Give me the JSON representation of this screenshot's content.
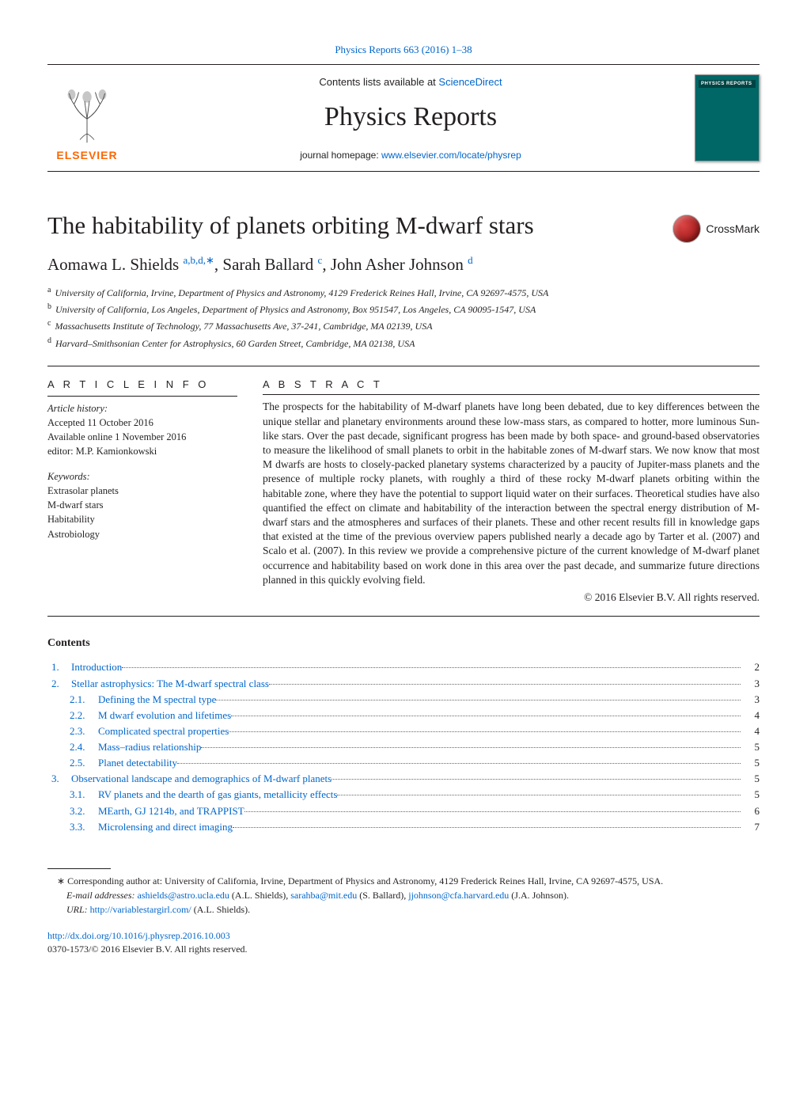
{
  "colors": {
    "link": "#0066cc",
    "text": "#231f20",
    "elsevier_orange": "#ff6600",
    "cover_bg": "#006666",
    "cover_header": "#004444"
  },
  "top_citation": {
    "prefix": "Physics Reports 663 (2016) 1–38"
  },
  "header": {
    "contents_prefix": "Contents lists available at ",
    "sciencedirect": "ScienceDirect",
    "journal_name": "Physics Reports",
    "homepage_prefix": "journal homepage: ",
    "homepage_url": "www.elsevier.com/locate/physrep",
    "elsevier_label": "ELSEVIER",
    "cover_label": "PHYSICS REPORTS"
  },
  "article": {
    "title": "The habitability of planets orbiting M-dwarf stars",
    "crossmark_label": "CrossMark"
  },
  "authors": {
    "a1_name": "Aomawa L. Shields",
    "a1_aff": "a,b,d,",
    "a1_corr": "∗",
    "sep1": ", ",
    "a2_name": "Sarah Ballard",
    "a2_aff": "c",
    "sep2": ", ",
    "a3_name": "John Asher Johnson",
    "a3_aff": "d"
  },
  "affiliations": {
    "a": "University of California, Irvine, Department of Physics and Astronomy, 4129 Frederick Reines Hall, Irvine, CA 92697-4575, USA",
    "b": "University of California, Los Angeles, Department of Physics and Astronomy, Box 951547, Los Angeles, CA 90095-1547, USA",
    "c": "Massachusetts Institute of Technology, 77 Massachusetts Ave, 37-241, Cambridge, MA 02139, USA",
    "d": "Harvard–Smithsonian Center for Astrophysics, 60 Garden Street, Cambridge, MA 02138, USA"
  },
  "info": {
    "heading": "A R T I C L E   I N F O",
    "history_label": "Article history:",
    "accepted": "Accepted 11 October 2016",
    "online": "Available online 1 November 2016",
    "editor": "editor: M.P. Kamionkowski",
    "keywords_label": "Keywords:",
    "kw1": "Extrasolar planets",
    "kw2": "M-dwarf stars",
    "kw3": "Habitability",
    "kw4": "Astrobiology"
  },
  "abstract": {
    "heading": "A B S T R A C T",
    "text": "The prospects for the habitability of M-dwarf planets have long been debated, due to key differences between the unique stellar and planetary environments around these low-mass stars, as compared to hotter, more luminous Sun-like stars. Over the past decade, significant progress has been made by both space- and ground-based observatories to measure the likelihood of small planets to orbit in the habitable zones of M-dwarf stars. We now know that most M dwarfs are hosts to closely-packed planetary systems characterized by a paucity of Jupiter-mass planets and the presence of multiple rocky planets, with roughly a third of these rocky M-dwarf planets orbiting within the habitable zone, where they have the potential to support liquid water on their surfaces. Theoretical studies have also quantified the effect on climate and habitability of the interaction between the spectral energy distribution of M-dwarf stars and the atmospheres and surfaces of their planets. These and other recent results fill in knowledge gaps that existed at the time of the previous overview papers published nearly a decade ago by Tarter et al. (2007) and Scalo et al. (2007). In this review we provide a comprehensive picture of the current knowledge of M-dwarf planet occurrence and habitability based on work done in this area over the past decade, and summarize future directions planned in this quickly evolving field.",
    "copyright": "© 2016 Elsevier B.V. All rights reserved."
  },
  "contents": {
    "heading": "Contents",
    "items": [
      {
        "num": "1.",
        "level": 1,
        "title": "Introduction",
        "page": "2"
      },
      {
        "num": "2.",
        "level": 1,
        "title": "Stellar astrophysics: The M-dwarf spectral class",
        "page": "3"
      },
      {
        "num": "2.1.",
        "level": 2,
        "title": "Defining the M spectral type",
        "page": "3"
      },
      {
        "num": "2.2.",
        "level": 2,
        "title": "M dwarf evolution and lifetimes ",
        "page": "4"
      },
      {
        "num": "2.3.",
        "level": 2,
        "title": "Complicated spectral properties",
        "page": "4"
      },
      {
        "num": "2.4.",
        "level": 2,
        "title": "Mass–radius relationship ",
        "page": "5"
      },
      {
        "num": "2.5.",
        "level": 2,
        "title": "Planet detectability",
        "page": "5"
      },
      {
        "num": "3.",
        "level": 1,
        "title": "Observational landscape and demographics of M-dwarf planets",
        "page": "5"
      },
      {
        "num": "3.1.",
        "level": 2,
        "title": "RV planets and the dearth of gas giants, metallicity effects ",
        "page": "5"
      },
      {
        "num": "3.2.",
        "level": 2,
        "title": "MEarth, GJ 1214b, and TRAPPIST",
        "page": "6"
      },
      {
        "num": "3.3.",
        "level": 2,
        "title": "Microlensing and direct imaging",
        "page": "7"
      }
    ]
  },
  "footnotes": {
    "corr_mark": "∗",
    "corr_text": " Corresponding author at: University of California, Irvine, Department of Physics and Astronomy, 4129 Frederick Reines Hall, Irvine, CA 92697-4575, USA.",
    "email_label": "E-mail addresses: ",
    "email1": "ashields@astro.ucla.edu",
    "email1_who": " (A.L. Shields), ",
    "email2": "sarahba@mit.edu",
    "email2_who": " (S. Ballard), ",
    "email3": "jjohnson@cfa.harvard.edu",
    "email3_who": " (J.A. Johnson).",
    "url_label": "URL: ",
    "url": "http://variablestargirl.com/",
    "url_who": " (A.L. Shields)."
  },
  "footer": {
    "doi": "http://dx.doi.org/10.1016/j.physrep.2016.10.003",
    "issn_line": "0370-1573/© 2016 Elsevier B.V. All rights reserved."
  }
}
